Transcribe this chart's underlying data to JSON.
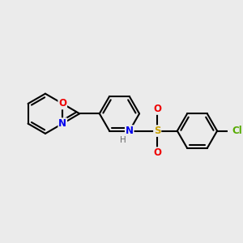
{
  "bg_color": "#ebebeb",
  "bond_color": "#000000",
  "bond_lw": 1.5,
  "dbo": 0.055,
  "atom_colors": {
    "N": "#0000ee",
    "O": "#ee0000",
    "S": "#c8a000",
    "Cl": "#55aa00",
    "H": "#666666"
  },
  "font_size": 8.5,
  "figsize": [
    3.0,
    3.0
  ],
  "dpi": 100,
  "R": 0.38
}
